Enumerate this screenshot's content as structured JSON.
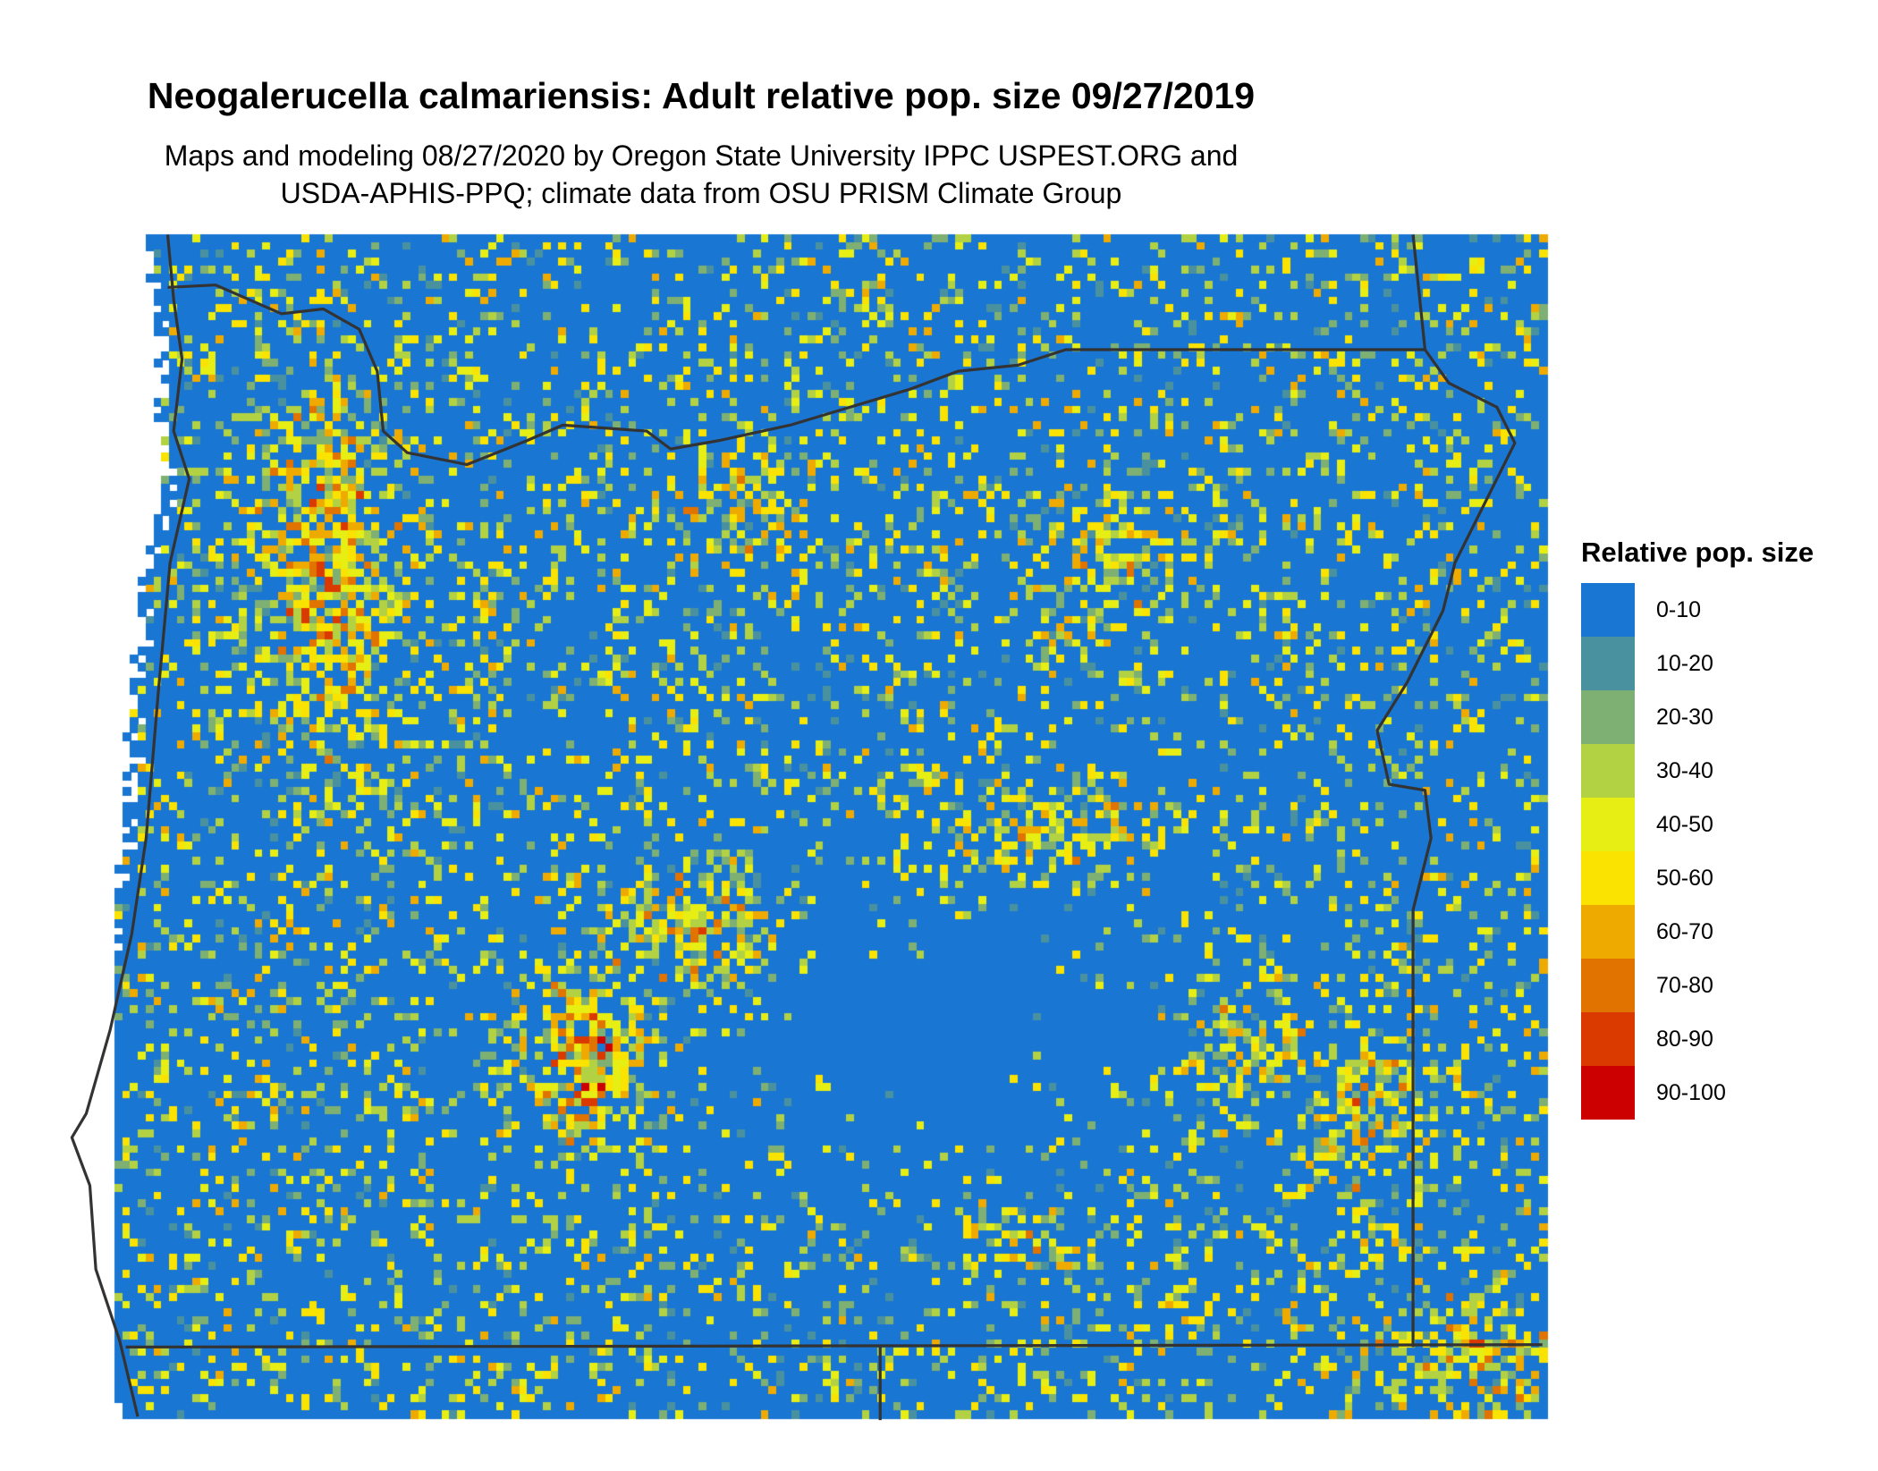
{
  "chart_data": {
    "type": "heatmap",
    "title": "Neogalerucella calmariensis: Adult relative pop. size 09/27/2019",
    "subtitle": [
      "Maps and modeling 08/27/2020 by Oregon State University IPPC USPEST.ORG and",
      "USDA-APHIS-PPQ; climate data from OSU PRISM Climate Group"
    ],
    "legend": {
      "title": "Relative pop. size",
      "placement": "right",
      "bins": [
        {
          "label": "0-10",
          "color": "#1976d2"
        },
        {
          "label": "10-20",
          "color": "#4a91a0"
        },
        {
          "label": "20-30",
          "color": "#7eb073"
        },
        {
          "label": "30-40",
          "color": "#b2d243"
        },
        {
          "label": "40-50",
          "color": "#e6ee14"
        },
        {
          "label": "50-60",
          "color": "#fae300"
        },
        {
          "label": "60-70",
          "color": "#efaa00"
        },
        {
          "label": "70-80",
          "color": "#e17300"
        },
        {
          "label": "80-90",
          "color": "#da3a00"
        },
        {
          "label": "90-100",
          "color": "#cc0000"
        }
      ]
    },
    "border_color": "#333333"
  }
}
